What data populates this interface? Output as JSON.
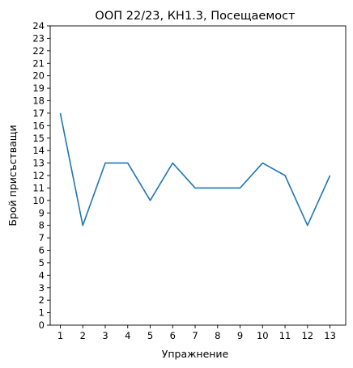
{
  "chart_data": {
    "type": "line",
    "title": "ООП 22/23, КН1.3, Посещаемост",
    "xlabel": "Упражнение",
    "ylabel": "Брой присъстващи",
    "x": [
      1,
      2,
      3,
      4,
      5,
      6,
      7,
      8,
      9,
      10,
      11,
      12,
      13
    ],
    "series": [
      {
        "values": [
          17,
          8,
          13,
          13,
          10,
          13,
          11,
          11,
          11,
          13,
          12,
          8,
          12
        ]
      }
    ],
    "xlim": [
      0.55,
      13.7
    ],
    "ylim": [
      0,
      24
    ],
    "xticks": [
      1,
      2,
      3,
      4,
      5,
      6,
      7,
      8,
      9,
      10,
      11,
      12,
      13
    ],
    "yticks": [
      0,
      1,
      2,
      3,
      4,
      5,
      6,
      7,
      8,
      9,
      10,
      11,
      12,
      13,
      14,
      15,
      16,
      17,
      18,
      19,
      20,
      21,
      22,
      23,
      24
    ],
    "grid": false,
    "legend": "none",
    "colors": {
      "line": "#1f77b4",
      "axes": "#000000",
      "background": "#ffffff"
    }
  }
}
